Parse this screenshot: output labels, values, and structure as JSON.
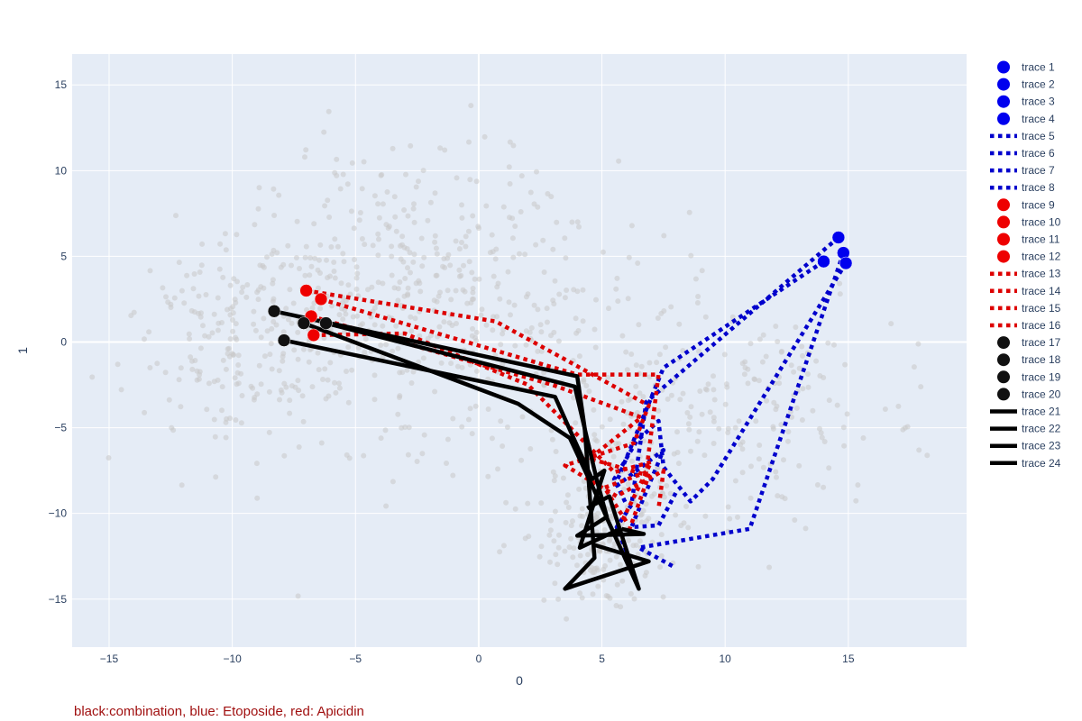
{
  "chart_data": {
    "type": "scatter",
    "xlabel": "0",
    "ylabel": "1",
    "xlim": [
      -16.5,
      19.8
    ],
    "ylim": [
      -17.8,
      16.8
    ],
    "xticks": [
      -15,
      -10,
      -5,
      0,
      5,
      10,
      15
    ],
    "yticks": [
      -15,
      -10,
      -5,
      0,
      5,
      10,
      15
    ],
    "grid": true,
    "legend_position": "right",
    "annotation": "black:combination, blue: Etoposide, red: Apicidin",
    "background": {
      "color": "#c8c8c8",
      "seed": 7,
      "count": 1100,
      "clusters": [
        {
          "cx": -9,
          "cy": 0,
          "sx": 2.6,
          "sy": 3.2,
          "weight": 0.22
        },
        {
          "cx": -3,
          "cy": 4,
          "sx": 3.5,
          "sy": 4.0,
          "weight": 0.24
        },
        {
          "cx": 1,
          "cy": 1,
          "sx": 3.5,
          "sy": 4.5,
          "weight": 0.16
        },
        {
          "cx": 5,
          "cy": -11,
          "sx": 1.5,
          "sy": 2.2,
          "weight": 0.18
        },
        {
          "cx": 10,
          "cy": -4,
          "sx": 3.5,
          "sy": 3.5,
          "weight": 0.2
        }
      ]
    },
    "series": [
      {
        "name": "trace 1",
        "mode": "markers",
        "color": "#0000ee",
        "points": [
          [
            14.6,
            6.1
          ]
        ]
      },
      {
        "name": "trace 2",
        "mode": "markers",
        "color": "#0000ee",
        "points": [
          [
            14.8,
            5.2
          ]
        ]
      },
      {
        "name": "trace 3",
        "mode": "markers",
        "color": "#0000ee",
        "points": [
          [
            14.0,
            4.7
          ]
        ]
      },
      {
        "name": "trace 4",
        "mode": "markers",
        "color": "#0000ee",
        "points": [
          [
            14.9,
            4.6
          ]
        ]
      },
      {
        "name": "trace 5",
        "mode": "lines",
        "dash": "dot",
        "color": "#0000cc",
        "points": [
          [
            14.6,
            6.1
          ],
          [
            6.8,
            -3.5
          ],
          [
            6.2,
            -9.5
          ],
          [
            5.6,
            -10.8
          ],
          [
            6.1,
            -12.6
          ]
        ]
      },
      {
        "name": "trace 6",
        "mode": "lines",
        "dash": "dot",
        "color": "#0000cc",
        "points": [
          [
            14.8,
            5.2
          ],
          [
            11.0,
            -10.9
          ],
          [
            6.5,
            -12.0
          ],
          [
            7.9,
            -13.1
          ]
        ]
      },
      {
        "name": "trace 7",
        "mode": "lines",
        "dash": "dot",
        "color": "#0000cc",
        "points": [
          [
            14.0,
            4.7
          ],
          [
            7.5,
            -1.5
          ],
          [
            5.5,
            -8.5
          ],
          [
            7.5,
            -6.3
          ],
          [
            6.2,
            -10.8
          ],
          [
            7.3,
            -10.7
          ],
          [
            8.0,
            -8.8
          ]
        ]
      },
      {
        "name": "trace 8",
        "mode": "lines",
        "dash": "dot",
        "color": "#0000cc",
        "points": [
          [
            14.9,
            4.6
          ],
          [
            9.5,
            -8.0
          ],
          [
            8.6,
            -9.3
          ],
          [
            7.5,
            -7.3
          ],
          [
            7.3,
            -4.6
          ],
          [
            6.4,
            -5.8
          ],
          [
            5.5,
            -8.0
          ],
          [
            6.0,
            -9.5
          ]
        ]
      },
      {
        "name": "trace 9",
        "mode": "markers",
        "color": "#ee0000",
        "points": [
          [
            -7.0,
            3.0
          ]
        ]
      },
      {
        "name": "trace 10",
        "mode": "markers",
        "color": "#ee0000",
        "points": [
          [
            -6.4,
            2.5
          ]
        ]
      },
      {
        "name": "trace 11",
        "mode": "markers",
        "color": "#ee0000",
        "points": [
          [
            -6.8,
            1.5
          ]
        ]
      },
      {
        "name": "trace 12",
        "mode": "markers",
        "color": "#ee0000",
        "points": [
          [
            -6.7,
            0.4
          ]
        ]
      },
      {
        "name": "trace 13",
        "mode": "lines",
        "dash": "dot",
        "color": "#dd0000",
        "points": [
          [
            -7.0,
            3.0
          ],
          [
            0.7,
            1.2
          ],
          [
            6.9,
            -3.7
          ],
          [
            6.3,
            -5.9
          ],
          [
            3.5,
            -7.2
          ],
          [
            5.6,
            -9.0
          ],
          [
            7.5,
            -7.5
          ],
          [
            7.3,
            -9.7
          ]
        ]
      },
      {
        "name": "trace 14",
        "mode": "lines",
        "dash": "dot",
        "color": "#dd0000",
        "points": [
          [
            -6.4,
            2.5
          ],
          [
            4.0,
            -1.9
          ],
          [
            7.3,
            -1.9
          ],
          [
            6.8,
            -7.6
          ],
          [
            5.1,
            -8.5
          ],
          [
            6.0,
            -10.5
          ]
        ]
      },
      {
        "name": "trace 15",
        "mode": "lines",
        "dash": "dot",
        "color": "#dd0000",
        "points": [
          [
            -6.8,
            1.5
          ],
          [
            3.0,
            -2.5
          ],
          [
            6.6,
            -4.4
          ],
          [
            4.5,
            -6.8
          ],
          [
            6.9,
            -7.8
          ],
          [
            6.1,
            -11.0
          ]
        ]
      },
      {
        "name": "trace 16",
        "mode": "lines",
        "dash": "dot",
        "color": "#dd0000",
        "points": [
          [
            -6.7,
            0.4
          ],
          [
            -3.0,
            0.5
          ],
          [
            2.0,
            -2.5
          ],
          [
            5.5,
            -7.6
          ],
          [
            7.0,
            -7.0
          ],
          [
            5.8,
            -10.5
          ]
        ]
      },
      {
        "name": "trace 17",
        "mode": "markers",
        "color": "#111111",
        "points": [
          [
            -8.3,
            1.8
          ]
        ]
      },
      {
        "name": "trace 18",
        "mode": "markers",
        "color": "#111111",
        "points": [
          [
            -7.1,
            1.1
          ]
        ]
      },
      {
        "name": "trace 19",
        "mode": "markers",
        "color": "#111111",
        "points": [
          [
            -6.2,
            1.1
          ]
        ]
      },
      {
        "name": "trace 20",
        "mode": "markers",
        "color": "#111111",
        "points": [
          [
            -7.9,
            0.1
          ]
        ]
      },
      {
        "name": "trace 21",
        "mode": "lines",
        "dash": "solid",
        "color": "#000000",
        "points": [
          [
            -8.3,
            1.8
          ],
          [
            4.0,
            -2.0
          ],
          [
            4.3,
            -5.0
          ],
          [
            4.7,
            -12.6
          ],
          [
            3.5,
            -14.4
          ],
          [
            6.9,
            -12.8
          ],
          [
            4.6,
            -11.8
          ]
        ]
      },
      {
        "name": "trace 22",
        "mode": "lines",
        "dash": "solid",
        "color": "#000000",
        "points": [
          [
            -7.1,
            1.1
          ],
          [
            1.6,
            -3.6
          ],
          [
            3.7,
            -5.6
          ],
          [
            4.9,
            -9.3
          ],
          [
            6.5,
            -14.4
          ],
          [
            5.3,
            -9.0
          ],
          [
            4.4,
            -9.7
          ]
        ]
      },
      {
        "name": "trace 23",
        "mode": "lines",
        "dash": "solid",
        "color": "#000000",
        "points": [
          [
            -6.2,
            1.1
          ],
          [
            3.9,
            -2.6
          ],
          [
            4.8,
            -8.1
          ],
          [
            5.2,
            -10.2
          ],
          [
            4.0,
            -11.3
          ],
          [
            6.7,
            -11.2
          ],
          [
            5.8,
            -10.9
          ]
        ]
      },
      {
        "name": "trace 24",
        "mode": "lines",
        "dash": "solid",
        "color": "#000000",
        "points": [
          [
            -7.9,
            0.1
          ],
          [
            3.1,
            -3.2
          ],
          [
            4.6,
            -8.0
          ],
          [
            5.1,
            -7.5
          ],
          [
            4.1,
            -12.0
          ],
          [
            5.6,
            -11.0
          ],
          [
            5.9,
            -11.4
          ]
        ]
      }
    ]
  }
}
